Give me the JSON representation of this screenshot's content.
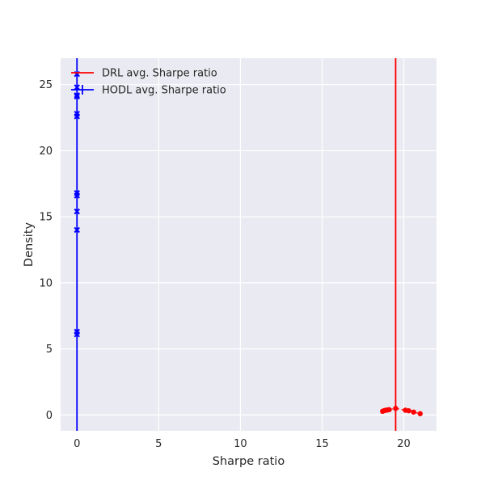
{
  "chart_data": {
    "type": "line",
    "title": "",
    "xlabel": "Sharpe ratio",
    "ylabel": "Density",
    "xlim": [
      -1,
      22
    ],
    "ylim": [
      -1.2,
      27
    ],
    "xticks": [
      0,
      5,
      10,
      15,
      20
    ],
    "yticks": [
      0,
      5,
      10,
      15,
      20,
      25
    ],
    "grid": true,
    "legend_position": "top-left",
    "colors": {
      "background": "#eaeaf2",
      "grid": "#ffffff",
      "drl": "#ff0000",
      "hodl": "#0000ff"
    },
    "series": [
      {
        "name": "DRL avg. Sharpe ratio",
        "color": "#ff0000",
        "marker": "circle",
        "avg": 19.5,
        "x": [
          18.7,
          18.8,
          18.9,
          19.0,
          19.1,
          19.5,
          20.1,
          20.3,
          20.6,
          21.0
        ],
        "y": [
          0.28,
          0.33,
          0.36,
          0.38,
          0.4,
          0.5,
          0.36,
          0.32,
          0.22,
          0.1
        ]
      },
      {
        "name": "HODL avg. Sharpe ratio",
        "color": "#0000ff",
        "marker": "x",
        "avg": 0.0,
        "x": [
          0.0,
          0.0,
          0.0,
          0.0,
          0.0,
          0.0,
          0.0,
          0.0,
          0.0,
          0.0,
          0.0,
          0.0
        ],
        "y": [
          6.1,
          6.3,
          14.0,
          15.4,
          16.6,
          16.8,
          22.6,
          22.8,
          24.1,
          24.2,
          24.8,
          25.8
        ]
      }
    ]
  }
}
